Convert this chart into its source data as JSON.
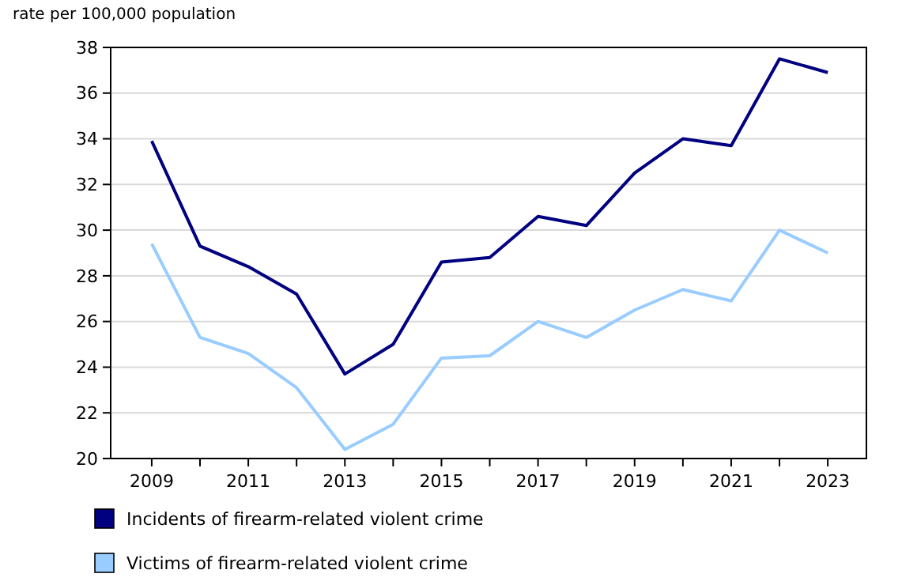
{
  "chart_data": {
    "type": "line",
    "ylabel": "rate per 100,000 population",
    "x": [
      2009,
      2010,
      2011,
      2012,
      2013,
      2014,
      2015,
      2016,
      2017,
      2018,
      2019,
      2020,
      2021,
      2022,
      2023
    ],
    "series": [
      {
        "name": "Incidents of firearm-related violent crime",
        "color": "#000080",
        "values": [
          33.9,
          29.3,
          28.4,
          27.2,
          23.7,
          25.0,
          28.6,
          28.8,
          30.6,
          30.2,
          32.5,
          34.0,
          33.7,
          37.5,
          36.9
        ]
      },
      {
        "name": "Victims of firearm-related violent crime",
        "color": "#99ccff",
        "values": [
          29.4,
          25.3,
          24.6,
          23.1,
          20.4,
          21.5,
          24.4,
          24.5,
          26.0,
          25.3,
          26.5,
          27.4,
          26.9,
          30.0,
          29.0
        ]
      }
    ],
    "xlim": [
      2008.15,
      2023.8
    ],
    "xticks": [
      2009,
      {
        "value": 2010,
        "label": null
      },
      2011,
      {
        "value": 2012,
        "label": null
      },
      2013,
      {
        "value": 2014,
        "label": null
      },
      2015,
      {
        "value": 2016,
        "label": null
      },
      2017,
      {
        "value": 2018,
        "label": null
      },
      2019,
      {
        "value": 2020,
        "label": null
      },
      2021,
      {
        "value": 2022,
        "label": null
      },
      2023
    ],
    "ylim": [
      20,
      38
    ],
    "yticks": [
      20,
      22,
      24,
      26,
      28,
      30,
      32,
      34,
      36,
      38
    ],
    "grid": "y",
    "legend": "bottom left",
    "marker": "none",
    "line_style": "solid"
  }
}
